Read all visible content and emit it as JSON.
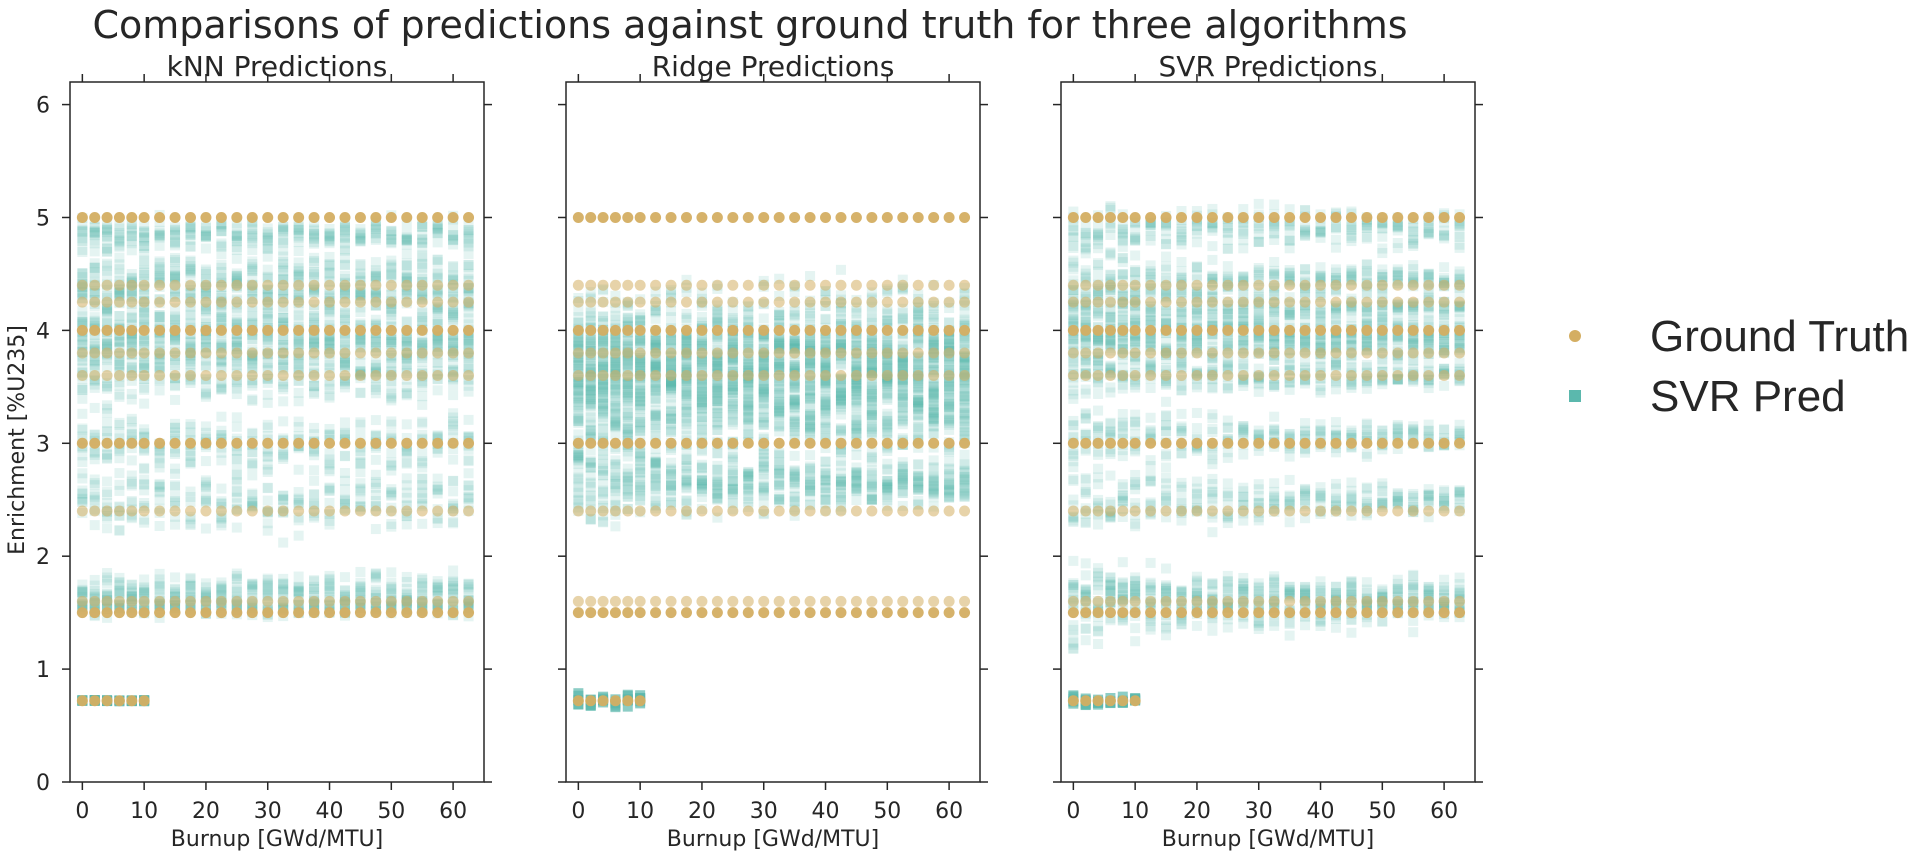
{
  "chart_data": {
    "type": "scatter",
    "title": "Comparisons of predictions against ground truth for three algorithms",
    "xlabel": "Burnup [GWd/MTU]",
    "ylabel": "Enrichment [%U235]",
    "xlim": [
      -2,
      65
    ],
    "ylim": [
      0,
      6.2
    ],
    "xticks": [
      "0",
      "10",
      "20",
      "30",
      "40",
      "50",
      "60"
    ],
    "yticks": [
      "0",
      "1",
      "2",
      "3",
      "4",
      "5",
      "6"
    ],
    "grid": false,
    "legend_placement": "right",
    "colors": {
      "ground_truth": "#d4ae62",
      "prediction": "#5bb8ad",
      "axis": "#262626"
    },
    "burnup_values": [
      0,
      2,
      4,
      6,
      8,
      10,
      12.5,
      15,
      17.5,
      20,
      22.5,
      25,
      27.5,
      30,
      32.5,
      35,
      37.5,
      40,
      42.5,
      45,
      47.5,
      50,
      52.5,
      55,
      57.5,
      60,
      62.5
    ],
    "ground_truth_enrichments": [
      0.72,
      1.5,
      1.6,
      2.4,
      3.0,
      3.6,
      3.8,
      4.0,
      4.25,
      4.4,
      5.0
    ],
    "panels": [
      {
        "title": "kNN Predictions",
        "show_ylabel": true,
        "predictions": [
          {
            "truth": 0.72,
            "mean": 0.72,
            "spread": 0.01,
            "spread_end": 0.01
          },
          {
            "truth": 1.5,
            "mean": 1.55,
            "spread": 0.12,
            "spread_end": 0.12
          },
          {
            "truth": 1.6,
            "mean": 1.7,
            "spread": 0.2,
            "spread_end": 0.2
          },
          {
            "truth": 2.4,
            "mean": 2.5,
            "spread": 0.45,
            "spread_end": 0.45
          },
          {
            "truth": 3.0,
            "mean": 3.0,
            "spread": 0.35,
            "spread_end": 0.35
          },
          {
            "truth": 3.6,
            "mean": 3.6,
            "spread": 0.35,
            "spread_end": 0.35
          },
          {
            "truth": 3.8,
            "mean": 3.85,
            "spread": 0.3,
            "spread_end": 0.3
          },
          {
            "truth": 4.0,
            "mean": 4.0,
            "spread": 0.25,
            "spread_end": 0.25
          },
          {
            "truth": 4.25,
            "mean": 4.3,
            "spread": 0.35,
            "spread_end": 0.35
          },
          {
            "truth": 4.4,
            "mean": 4.45,
            "spread": 0.4,
            "spread_end": 0.4
          },
          {
            "truth": 5.0,
            "mean": 4.85,
            "spread": 0.2,
            "spread_end": 0.2
          }
        ]
      },
      {
        "title": "Ridge Predictions",
        "show_ylabel": false,
        "predictions": [
          {
            "truth": 0.72,
            "mean": 0.72,
            "spread": 0.1,
            "spread_end": 0.1
          },
          {
            "truth": 1.5,
            "mean": 2.6,
            "spread": 0.5,
            "spread_end": 0.2
          },
          {
            "truth": 1.6,
            "mean": 2.7,
            "spread": 0.5,
            "spread_end": 0.25
          },
          {
            "truth": 2.4,
            "mean": 3.1,
            "spread": 0.45,
            "spread_end": 0.35
          },
          {
            "truth": 3.0,
            "mean": 3.3,
            "spread": 0.4,
            "spread_end": 0.4
          },
          {
            "truth": 3.6,
            "mean": 3.5,
            "spread": 0.4,
            "spread_end": 0.45
          },
          {
            "truth": 3.8,
            "mean": 3.6,
            "spread": 0.4,
            "spread_end": 0.45
          },
          {
            "truth": 4.0,
            "mean": 3.7,
            "spread": 0.4,
            "spread_end": 0.5
          },
          {
            "truth": 4.25,
            "mean": 3.8,
            "spread": 0.4,
            "spread_end": 0.55
          },
          {
            "truth": 4.4,
            "mean": 3.9,
            "spread": 0.4,
            "spread_end": 0.6
          },
          {
            "truth": 5.0,
            "mean": 4.1,
            "spread": 0.45,
            "spread_end": 0.7
          }
        ]
      },
      {
        "title": "SVR Predictions",
        "show_ylabel": false,
        "predictions": [
          {
            "truth": 0.72,
            "mean": 0.72,
            "spread": 0.06,
            "spread_end": 0.06
          },
          {
            "truth": 1.5,
            "mean": 1.55,
            "spread": 0.5,
            "spread_end": 0.2
          },
          {
            "truth": 1.6,
            "mean": 1.65,
            "spread": 0.4,
            "spread_end": 0.2
          },
          {
            "truth": 2.4,
            "mean": 2.5,
            "spread": 0.45,
            "spread_end": 0.15
          },
          {
            "truth": 3.0,
            "mean": 3.05,
            "spread": 0.35,
            "spread_end": 0.15
          },
          {
            "truth": 3.6,
            "mean": 3.6,
            "spread": 0.3,
            "spread_end": 0.15
          },
          {
            "truth": 3.8,
            "mean": 3.85,
            "spread": 0.25,
            "spread_end": 0.15
          },
          {
            "truth": 4.0,
            "mean": 4.0,
            "spread": 0.2,
            "spread_end": 0.15
          },
          {
            "truth": 4.25,
            "mean": 4.2,
            "spread": 0.25,
            "spread_end": 0.15
          },
          {
            "truth": 4.4,
            "mean": 4.45,
            "spread": 0.3,
            "spread_end": 0.15
          },
          {
            "truth": 5.0,
            "mean": 4.9,
            "spread": 0.35,
            "spread_end": 0.2
          }
        ]
      }
    ],
    "legend": [
      {
        "label": "Ground Truth",
        "marker": "circle",
        "color": "#d4ae62"
      },
      {
        "label": "SVR Pred",
        "marker": "square",
        "color": "#5bb8ad"
      }
    ]
  }
}
